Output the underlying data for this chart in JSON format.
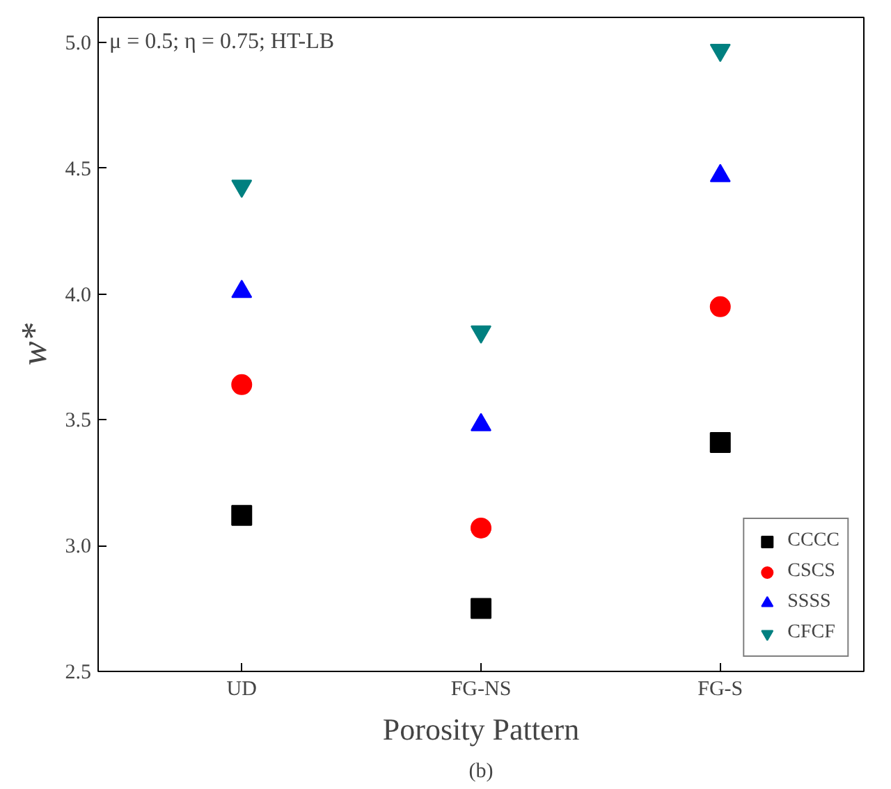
{
  "chart_data": {
    "type": "scatter",
    "xlabel": "Porosity Pattern",
    "ylabel": "w*",
    "categories": [
      "UD",
      "FG-NS",
      "FG-S"
    ],
    "series": [
      {
        "name": "CCCC",
        "color": "#000000",
        "marker": "square",
        "values": [
          3.12,
          2.75,
          3.41
        ]
      },
      {
        "name": "CSCS",
        "color": "#ff0000",
        "marker": "circle",
        "values": [
          3.64,
          3.07,
          3.95
        ]
      },
      {
        "name": "SSSS",
        "color": "#0000ff",
        "marker": "triangle",
        "values": [
          4.01,
          3.48,
          4.47
        ]
      },
      {
        "name": "CFCF",
        "color": "#008080",
        "marker": "triangle",
        "values": [
          4.43,
          3.85,
          4.97
        ]
      }
    ],
    "ylim": [
      2.5,
      5.1
    ],
    "yticks": [
      2.5,
      {
        "value": 3,
        "label": "3.0"
      },
      3.5,
      {
        "value": 4,
        "label": "4.0"
      },
      4.5,
      {
        "value": 5,
        "label": "5.0"
      }
    ],
    "grid": false,
    "legend": "bottom right",
    "annotations": [
      "μ = 0.5; η = 0.75; HT-LB",
      "(b)"
    ]
  }
}
